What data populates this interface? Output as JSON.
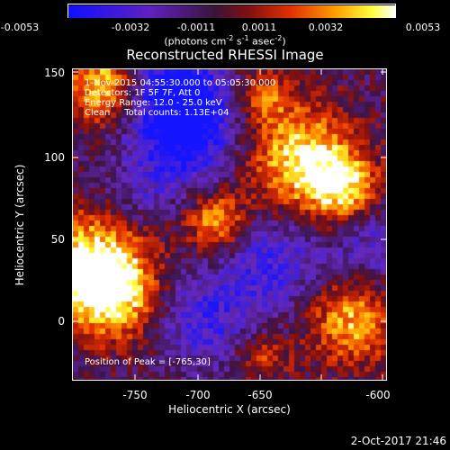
{
  "colorbar": {
    "ticks": [
      "-0.0053",
      "-0.0032",
      "-0.0011",
      "0.0011",
      "0.0032",
      "0.0053"
    ],
    "unit_text": "(photons cm",
    "unit_exp1": "-2",
    "unit_mid": " s",
    "unit_exp2": "-1",
    "unit_mid2": " asec",
    "unit_exp3": "-2",
    "unit_end": ")",
    "colors": [
      "#0000ff",
      "#5a1bb0",
      "#4a1850",
      "#b01010",
      "#ff8000",
      "#ffff00",
      "#ffffff"
    ]
  },
  "title": "Reconstructed RHESSI Image",
  "info": {
    "line1": "1-Nov-2015 04:55:30.000 to 05:05:30.000",
    "line2": "Detectors: 1F 5F 7F, Att 0",
    "line3": "Energy Range: 12.0 - 25.0 keV",
    "line4": "Clean     Total counts: 1.13E+04",
    "peak": "Position of Peak = [-765,30]"
  },
  "x_axis": {
    "label": "Heliocentric X (arcsec)",
    "ticks": [
      "-750",
      "-700",
      "-650",
      "-600"
    ]
  },
  "y_axis": {
    "label": "Heliocentric Y (arcsec)",
    "ticks": [
      "150",
      "100",
      "50",
      "0"
    ]
  },
  "timestamp": "2-Oct-2017 21:46"
}
